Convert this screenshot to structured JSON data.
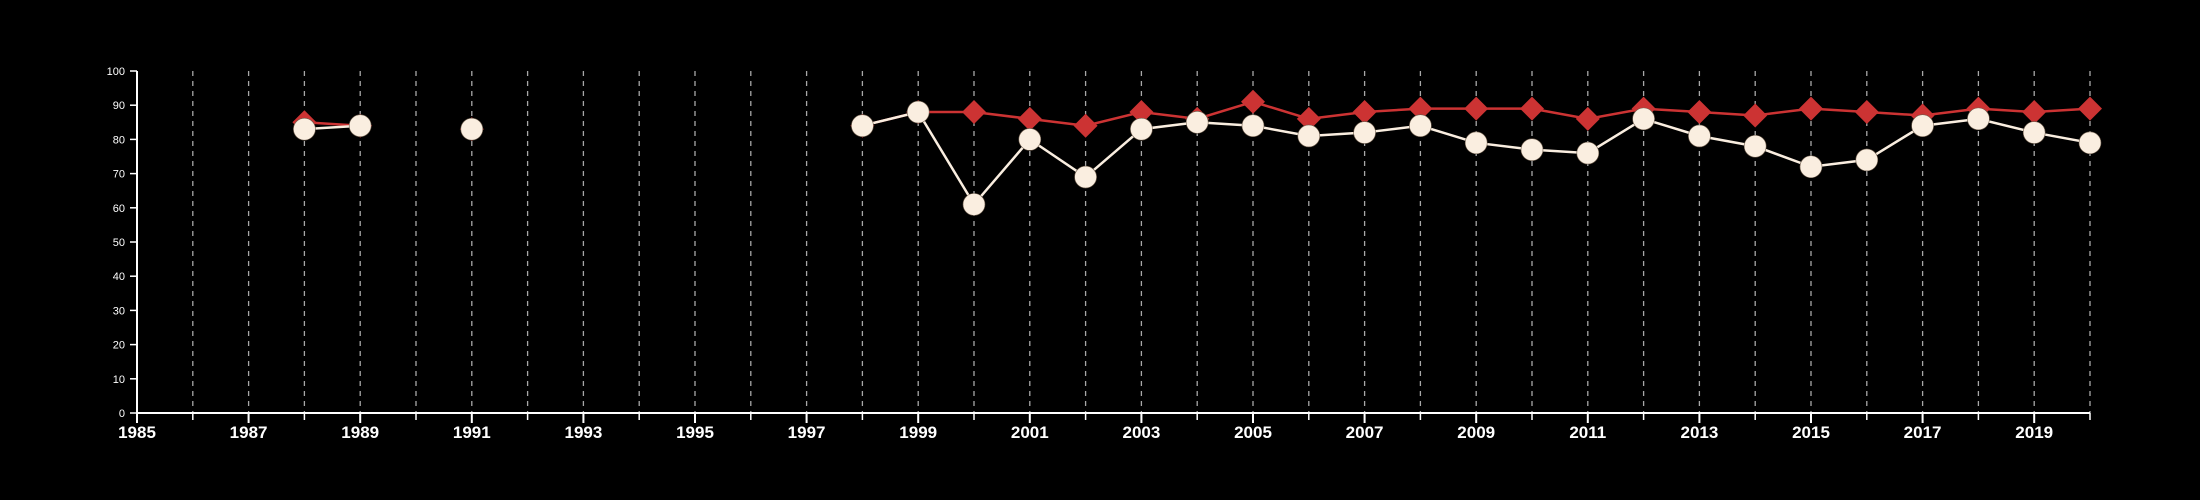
{
  "chart_data": {
    "type": "line",
    "title": "",
    "xlabel": "",
    "ylabel": "",
    "xlim": [
      1985,
      2020
    ],
    "ylim": [
      0,
      100
    ],
    "xticks": [
      1985,
      1987,
      1989,
      1991,
      1993,
      1995,
      1997,
      1999,
      2001,
      2003,
      2005,
      2007,
      2009,
      2011,
      2013,
      2015,
      2017,
      2019
    ],
    "yticks": [
      0,
      10,
      20,
      30,
      40,
      50,
      60,
      70,
      80,
      90,
      100
    ],
    "grid": "vertical dashed lines at every year",
    "legend": "none",
    "background": "#000000",
    "series": [
      {
        "color": "#cc3333",
        "marker": "diamond",
        "points": [
          [
            1988,
            85
          ],
          [
            1989,
            84
          ],
          [
            1991,
            83
          ],
          [
            1998,
            84
          ],
          [
            1999,
            88
          ],
          [
            2000,
            88
          ],
          [
            2001,
            86
          ],
          [
            2002,
            84
          ],
          [
            2003,
            88
          ],
          [
            2004,
            86
          ],
          [
            2005,
            91
          ],
          [
            2006,
            86
          ],
          [
            2007,
            88
          ],
          [
            2008,
            89
          ],
          [
            2009,
            89
          ],
          [
            2010,
            89
          ],
          [
            2011,
            86
          ],
          [
            2012,
            89
          ],
          [
            2013,
            88
          ],
          [
            2014,
            87
          ],
          [
            2015,
            89
          ],
          [
            2016,
            88
          ],
          [
            2017,
            87
          ],
          [
            2018,
            89
          ],
          [
            2019,
            88
          ],
          [
            2020,
            89
          ]
        ]
      },
      {
        "color": "#faeee0",
        "marker": "circle",
        "points": [
          [
            1988,
            83
          ],
          [
            1989,
            84
          ],
          [
            1991,
            83
          ],
          [
            1998,
            84
          ],
          [
            1999,
            88
          ],
          [
            2000,
            61
          ],
          [
            2001,
            80
          ],
          [
            2002,
            69
          ],
          [
            2003,
            83
          ],
          [
            2004,
            85
          ],
          [
            2005,
            84
          ],
          [
            2006,
            81
          ],
          [
            2007,
            82
          ],
          [
            2008,
            84
          ],
          [
            2009,
            79
          ],
          [
            2010,
            77
          ],
          [
            2011,
            76
          ],
          [
            2012,
            86
          ],
          [
            2013,
            81
          ],
          [
            2014,
            78
          ],
          [
            2015,
            72
          ],
          [
            2016,
            74
          ],
          [
            2017,
            84
          ],
          [
            2018,
            86
          ],
          [
            2019,
            82
          ],
          [
            2020,
            79
          ]
        ]
      }
    ]
  }
}
